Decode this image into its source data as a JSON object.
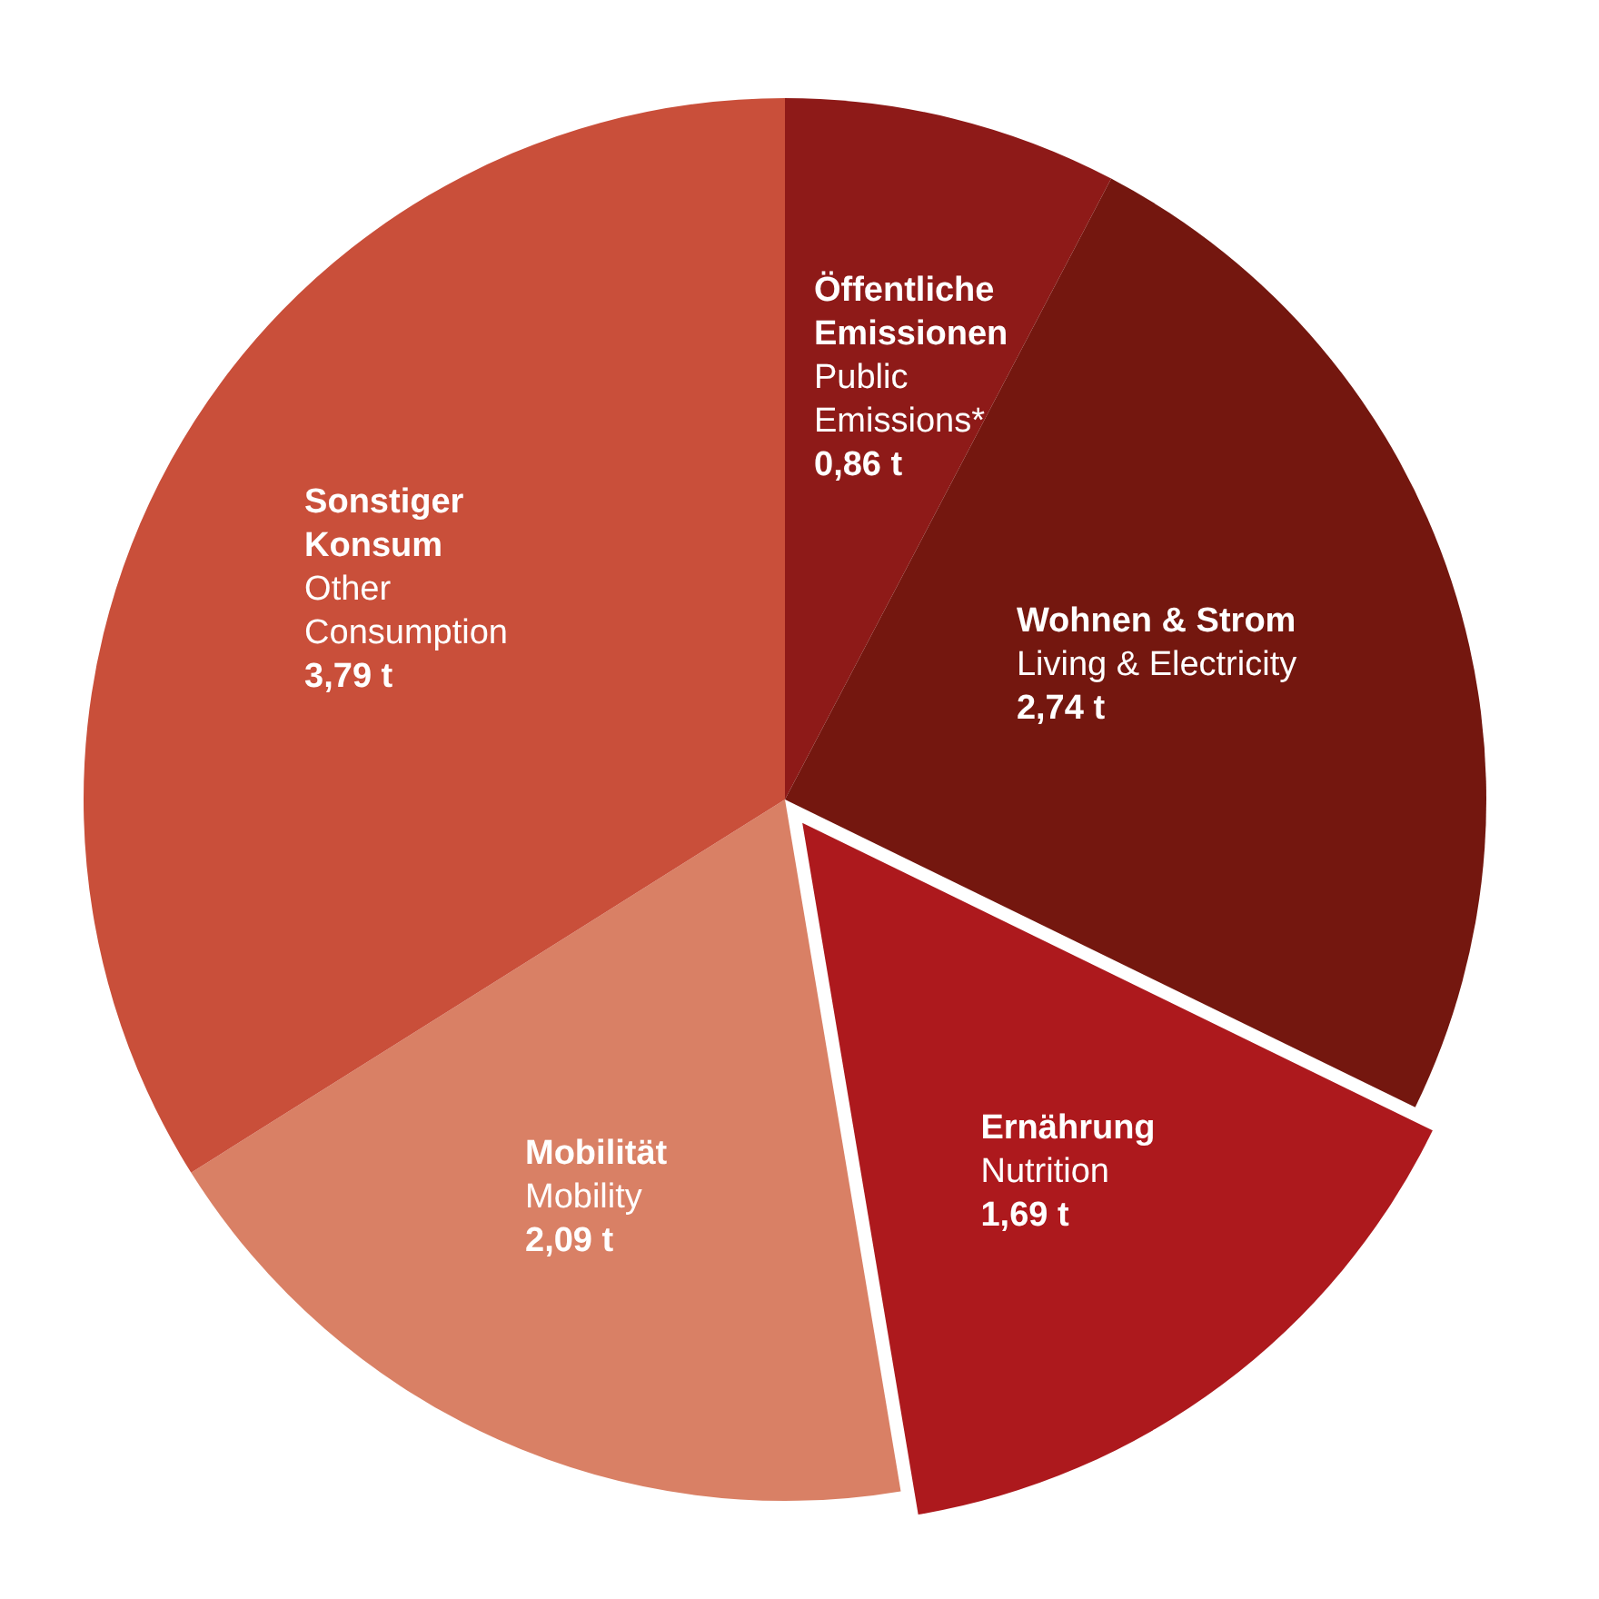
{
  "chart_data": {
    "type": "pie",
    "categories": [
      "Öffentliche Emissionen\nPublic Emissions*",
      "Wohnen & Strom\nLiving & Electricity",
      "Ernährung\nNutrition",
      "Mobilität\nMobility",
      "Sonstiger Konsum\nOther Consumption"
    ],
    "values": [
      0.86,
      2.74,
      1.69,
      2.09,
      3.79
    ],
    "value_labels": [
      "0,86 t",
      "2,74 t",
      "1,69 t",
      "2,09 t",
      "3,79 t"
    ],
    "colors": [
      "#8e1a18",
      "#74170f",
      "#ad191d",
      "#d98065",
      "#c94f3a"
    ]
  }
}
